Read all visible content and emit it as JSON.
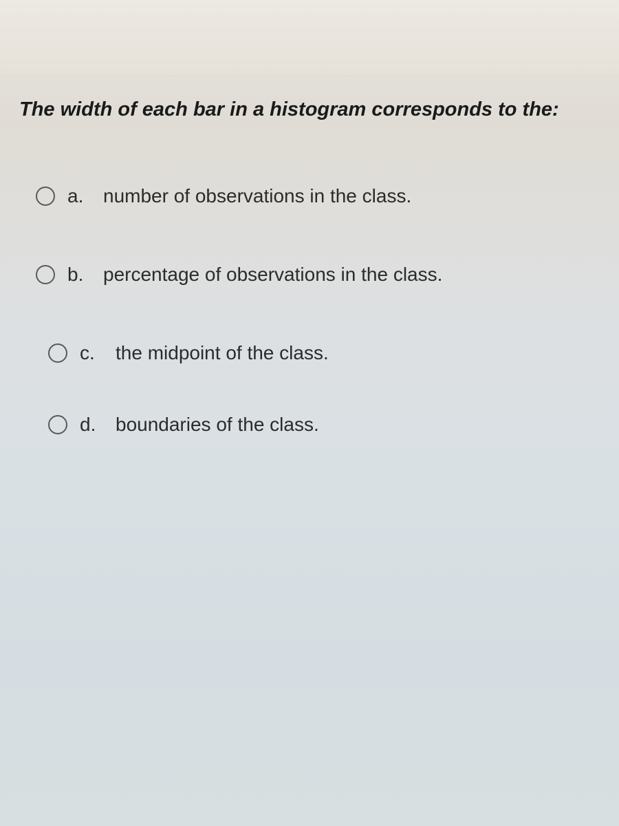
{
  "question": {
    "text": "The width of each bar in a histogram corresponds to the:"
  },
  "options": [
    {
      "letter": "a.",
      "text": "number of observations in the class."
    },
    {
      "letter": "b.",
      "text": "percentage of observations in the class."
    },
    {
      "letter": "c.",
      "text": "the midpoint of the class."
    },
    {
      "letter": "d.",
      "text": "boundaries of the class."
    }
  ],
  "colors": {
    "text_primary": "#1a1a1a",
    "text_option": "#2b2b2b",
    "radio_border": "#5a5a5a",
    "background_top": "#ede9e3",
    "background_main": "#dde0e2"
  },
  "typography": {
    "question_fontsize": 29,
    "question_weight": "bold",
    "question_style": "italic",
    "option_fontsize": 28
  }
}
